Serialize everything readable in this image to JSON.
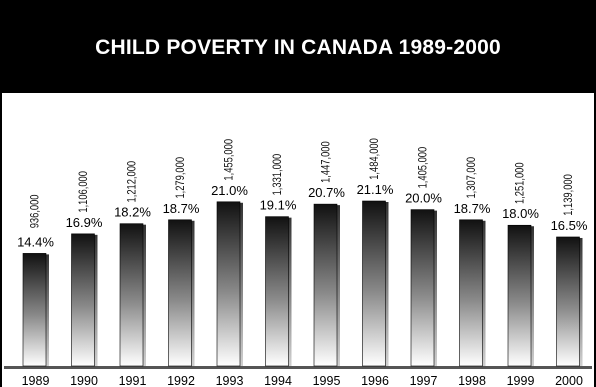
{
  "chart_data": {
    "type": "bar",
    "title": "CHILD POVERTY IN CANADA 1989-2000",
    "categories": [
      "1989",
      "1990",
      "1991",
      "1992",
      "1993",
      "1994",
      "1995",
      "1996",
      "1997",
      "1998",
      "1999",
      "2000"
    ],
    "values": [
      14.4,
      16.9,
      18.2,
      18.7,
      21.0,
      19.1,
      20.7,
      21.1,
      20.0,
      18.7,
      18.0,
      16.5
    ],
    "value_labels": [
      "14.4%",
      "16.9%",
      "18.2%",
      "18.7%",
      "21.0%",
      "19.1%",
      "20.7%",
      "21.1%",
      "20.0%",
      "18.7%",
      "18.0%",
      "16.5%"
    ],
    "counts": [
      "936,000",
      "1,106,000",
      "1,212,000",
      "1,279,000",
      "1,455,000",
      "1,331,000",
      "1,447,000",
      "1,484,000",
      "1,405,000",
      "1,307,000",
      "1,251,000",
      "1,139,000"
    ],
    "xlabel": "",
    "ylabel": "",
    "ylim": [
      0,
      21.1
    ],
    "grid": false,
    "legend": "none",
    "colors": {
      "title_bg": "#000000",
      "title_text": "#ffffff",
      "bar_top": "#111111",
      "bar_bottom": "#ffffff",
      "bar_side": "#9a9a9a",
      "floor": "#555555"
    }
  }
}
